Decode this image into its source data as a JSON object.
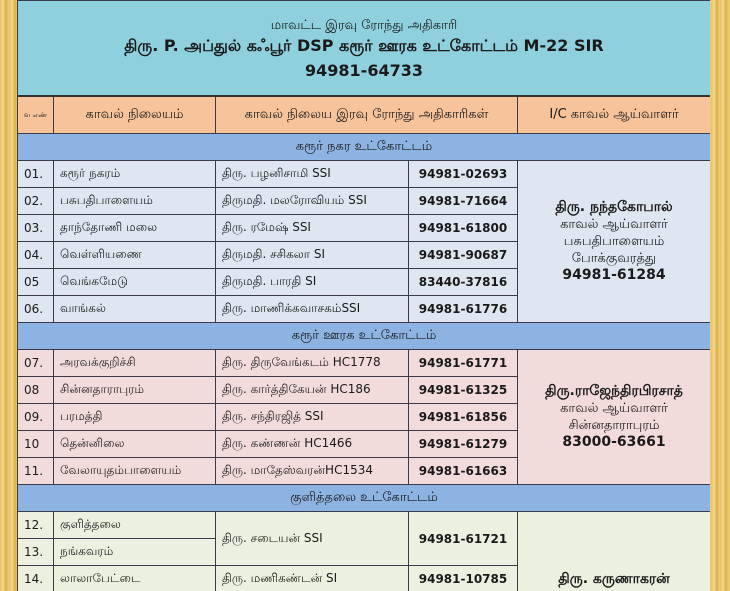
{
  "header": {
    "line1": "மாவட்ட இரவு ரோந்து அதிகாரி",
    "line2": "திரு. P. அப்துல் கஃபூர் DSP  கரூர் ஊரக உட்கோட்டம் M-22 SIR",
    "phone": "94981-64733"
  },
  "columns": {
    "sno": "வ எண்",
    "station": "காவல் நிலையம்",
    "officer": "காவல் நிலைய இரவு ரோந்து அதிகாரிகள்",
    "inspector": "I/C காவல் ஆய்வாளர்"
  },
  "sections": [
    {
      "title": "கரூர் நகர உட்கோட்டம்",
      "rows": [
        {
          "sno": "01.",
          "station": "கரூர் நகரம்",
          "officer": "திரு. பழனிசாமி SSI",
          "phone": "94981-02693"
        },
        {
          "sno": "02.",
          "station": "பசுபதிபாளையம்",
          "officer": "திருமதி. மலரோவியம் SSI",
          "phone": "94981-71664"
        },
        {
          "sno": "03.",
          "station": "தாந்தோணி மலை",
          "officer": "திரு. ரமேஷ் SSI",
          "phone": "94981-61800"
        },
        {
          "sno": "04.",
          "station": "வெள்ளியணை",
          "officer": "திருமதி. சசிகலா SI",
          "phone": "94981-90687"
        },
        {
          "sno": "05",
          "station": "வெங்கமேடு",
          "officer": "திருமதி. பாரதி SI",
          "phone": "83440-37816"
        },
        {
          "sno": "06.",
          "station": "வாங்கல்",
          "officer": "திரு. மாணிக்கவாசகம்SSI",
          "phone": "94981-61776"
        }
      ],
      "inspector": {
        "name": "திரு. நந்தகோபால்",
        "role": "காவல் ஆய்வாளர்",
        "place": "பசுபதிபாளையம்",
        "unit": "போக்குவரத்து",
        "phone": "94981-61284"
      }
    },
    {
      "title": "கரூர் ஊரக உட்கோட்டம்",
      "rows": [
        {
          "sno": "07.",
          "station": "அரவக்குறிச்சி",
          "officer": "திரு. திருவேங்கடம் HC1778",
          "phone": "94981-61771"
        },
        {
          "sno": "08",
          "station": "சின்னதாராபுரம்",
          "officer": "திரு. கார்த்திகேயன் HC186",
          "phone": "94981-61325"
        },
        {
          "sno": "09.",
          "station": "பரமத்தி",
          "officer": "திரு. சந்திரஜித்  SSI",
          "phone": "94981-61856"
        },
        {
          "sno": "10",
          "station": "தென்னிலை",
          "officer": "திரு. கண்ணன் HC1466",
          "phone": "94981-61279"
        },
        {
          "sno": "11.",
          "station": "வேலாயுதம்பாளையம்",
          "officer": "திரு. மாதேஸ்வரன்HC1534",
          "phone": "94981-61663"
        }
      ],
      "inspector": {
        "name": "திரு.ராஜேந்திரபிரசாத்",
        "role": "காவல் ஆய்வாளர்",
        "place": "சின்னதாராபுரம்",
        "phone": "83000-63661"
      }
    },
    {
      "title": "குளித்தலை உட்கோட்டம்",
      "rows": [
        {
          "sno": "12.",
          "station": "குளித்தலை",
          "officer": "திரு. சடையன் SSI",
          "phone": "94981-61721"
        },
        {
          "sno": "13.",
          "station": "நங்கவரம்"
        },
        {
          "sno": "14.",
          "station": "லாலாபேட்டை",
          "officer": "திரு. மணிகண்டன் SI",
          "phone": "94981-10785"
        }
      ],
      "inspector": {
        "name": "திரு. கருணாகரன்"
      }
    }
  ],
  "colors": {
    "title_bg": "#8fd0df",
    "header_bg": "#f6c39b",
    "section_bg": "#8db3e2",
    "urban_rows": "#dde6f1",
    "rural_rows": "#f2dcdb",
    "kulithalai_rows": "#ebf1de"
  }
}
